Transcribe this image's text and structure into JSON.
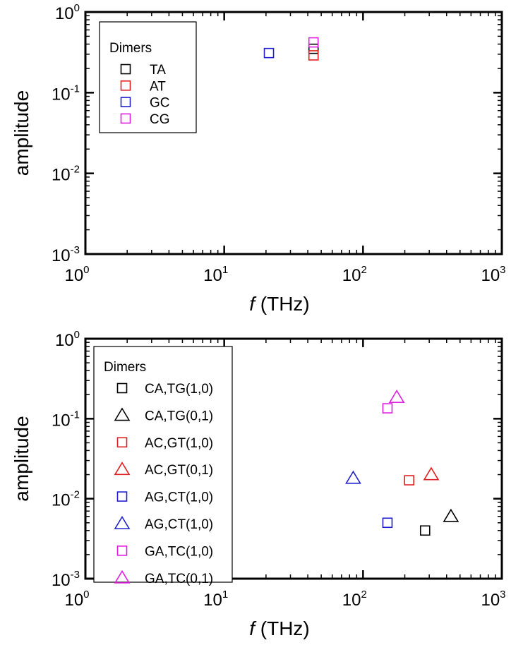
{
  "chart_data": [
    {
      "type": "scatter",
      "title": "",
      "xlabel_italic": "f",
      "xlabel_rest": " (THz)",
      "ylabel": "amplitude",
      "xscale": "log",
      "yscale": "log",
      "xlim": [
        1,
        1000
      ],
      "ylim": [
        0.001,
        1
      ],
      "x_ticks": [
        1,
        10,
        100,
        1000
      ],
      "y_ticks": [
        0.001,
        0.01,
        0.1,
        1
      ],
      "x_tick_labels": [
        {
          "base": "10",
          "exp": "0"
        },
        {
          "base": "10",
          "exp": "1"
        },
        {
          "base": "10",
          "exp": "2"
        },
        {
          "base": "10",
          "exp": "3"
        }
      ],
      "y_tick_labels": [
        {
          "base": "10",
          "exp": "-3"
        },
        {
          "base": "10",
          "exp": "-2"
        },
        {
          "base": "10",
          "exp": "-1"
        },
        {
          "base": "10",
          "exp": "0"
        }
      ],
      "legend": {
        "title": "Dimers",
        "placement": "top-left"
      },
      "series": [
        {
          "name": "TA",
          "marker": "square",
          "color": "#000000",
          "points": [
            [
              44,
              0.35
            ]
          ]
        },
        {
          "name": "AT",
          "marker": "square",
          "color": "#e02020",
          "points": [
            [
              44,
              0.29
            ]
          ]
        },
        {
          "name": "GC",
          "marker": "square",
          "color": "#2020d0",
          "points": [
            [
              21,
              0.31
            ]
          ]
        },
        {
          "name": "CG",
          "marker": "square",
          "color": "#e020e0",
          "points": [
            [
              44,
              0.42
            ]
          ]
        }
      ]
    },
    {
      "type": "scatter",
      "title": "",
      "xlabel_italic": "f",
      "xlabel_rest": " (THz)",
      "ylabel": "amplitude",
      "xscale": "log",
      "yscale": "log",
      "xlim": [
        1,
        1000
      ],
      "ylim": [
        0.001,
        1
      ],
      "x_ticks": [
        1,
        10,
        100,
        1000
      ],
      "y_ticks": [
        0.001,
        0.01,
        0.1,
        1
      ],
      "x_tick_labels": [
        {
          "base": "10",
          "exp": "0"
        },
        {
          "base": "10",
          "exp": "1"
        },
        {
          "base": "10",
          "exp": "2"
        },
        {
          "base": "10",
          "exp": "3"
        }
      ],
      "y_tick_labels": [
        {
          "base": "10",
          "exp": "-3"
        },
        {
          "base": "10",
          "exp": "-2"
        },
        {
          "base": "10",
          "exp": "-1"
        },
        {
          "base": "10",
          "exp": "0"
        }
      ],
      "legend": {
        "title": "Dimers",
        "placement": "top-left"
      },
      "series": [
        {
          "name": "CA,TG(1,0)",
          "marker": "square",
          "color": "#000000",
          "points": [
            [
              280,
              0.004
            ]
          ]
        },
        {
          "name": "CA,TG(0,1)",
          "marker": "triangle",
          "color": "#000000",
          "points": [
            [
              430,
              0.006
            ]
          ]
        },
        {
          "name": "AC,GT(1,0)",
          "marker": "square",
          "color": "#e02020",
          "points": [
            [
              215,
              0.017
            ]
          ]
        },
        {
          "name": "AC,GT(0,1)",
          "marker": "triangle",
          "color": "#e02020",
          "points": [
            [
              310,
              0.02
            ]
          ]
        },
        {
          "name": "AG,CT(1,0)",
          "marker": "square",
          "color": "#2020d0",
          "points": [
            [
              150,
              0.005
            ]
          ]
        },
        {
          "name": "AG,CT(1,0)",
          "marker": "triangle",
          "color": "#2020d0",
          "points": [
            [
              85,
              0.018
            ]
          ]
        },
        {
          "name": "GA,TC(1,0)",
          "marker": "square",
          "color": "#e020e0",
          "points": [
            [
              150,
              0.135
            ]
          ]
        },
        {
          "name": "GA,TC(0,1)",
          "marker": "triangle",
          "color": "#e020e0",
          "points": [
            [
              175,
              0.185
            ]
          ]
        }
      ]
    }
  ]
}
